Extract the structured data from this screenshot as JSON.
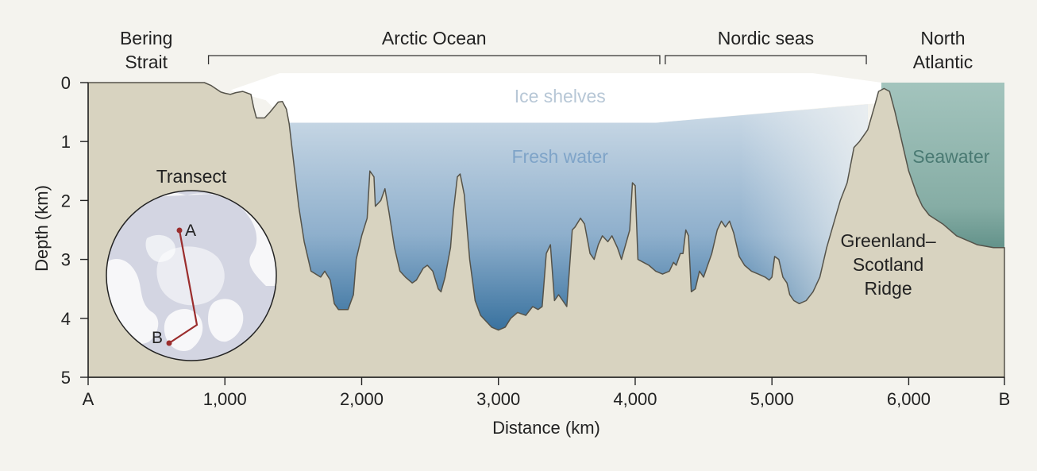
{
  "regions": [
    {
      "name": "Bering\nStrait",
      "from_km": 0,
      "to_km": 850,
      "bracket": false
    },
    {
      "name": "Arctic Ocean",
      "from_km": 880,
      "to_km": 4180,
      "bracket": true
    },
    {
      "name": "Nordic seas",
      "from_km": 4220,
      "to_km": 5690,
      "bracket": true
    },
    {
      "name": "North\nAtlantic",
      "from_km": 5800,
      "to_km": 6700,
      "bracket": false
    }
  ],
  "water_labels": {
    "ice": "Ice shelves",
    "fresh": "Fresh water",
    "sea": "Seawater"
  },
  "ridge_label": [
    "Greenland–",
    "Scotland",
    "Ridge"
  ],
  "axes": {
    "x_title": "Distance (km)",
    "y_title": "Depth (km)",
    "x_ticks": [
      {
        "value": 0,
        "label": "A"
      },
      {
        "value": 1000,
        "label": "1,000"
      },
      {
        "value": 2000,
        "label": "2,000"
      },
      {
        "value": 3000,
        "label": "3,000"
      },
      {
        "value": 4000,
        "label": "4,000"
      },
      {
        "value": 5000,
        "label": "5,000"
      },
      {
        "value": 6000,
        "label": "6,000"
      },
      {
        "value": 6700,
        "label": "B"
      }
    ],
    "y_ticks": [
      {
        "value": 0,
        "label": "0"
      },
      {
        "value": 1,
        "label": "1"
      },
      {
        "value": 2,
        "label": "2"
      },
      {
        "value": 3,
        "label": "3"
      },
      {
        "value": 4,
        "label": "4"
      },
      {
        "value": 5,
        "label": "5"
      }
    ],
    "x_range_km": [
      0,
      6700
    ],
    "y_range_km": [
      0,
      5
    ]
  },
  "inset": {
    "title": "Transect",
    "point_a": "A",
    "point_b": "B"
  },
  "colors": {
    "background": "#f4f3ee",
    "seabed": "#d8d3c0",
    "seabed_outline": "#55534a",
    "fresh_top": "#cddbe7",
    "fresh_bottom": "#2e6a99",
    "seawater_top": "#a3c4bd",
    "seawater_bottom": "#5a8b83",
    "transect_line": "#9b2d2d"
  },
  "profile_km": [
    [
      0,
      0
    ],
    [
      850,
      0
    ],
    [
      900,
      0.05
    ],
    [
      970,
      0.16
    ],
    [
      1000,
      0.18
    ],
    [
      1040,
      0.2
    ],
    [
      1080,
      0.17
    ],
    [
      1130,
      0.15
    ],
    [
      1190,
      0.2
    ],
    [
      1210,
      0.42
    ],
    [
      1230,
      0.6
    ],
    [
      1290,
      0.6
    ],
    [
      1330,
      0.5
    ],
    [
      1390,
      0.33
    ],
    [
      1420,
      0.32
    ],
    [
      1450,
      0.45
    ],
    [
      1470,
      0.7
    ],
    [
      1500,
      1.3
    ],
    [
      1540,
      2.1
    ],
    [
      1580,
      2.7
    ],
    [
      1630,
      3.2
    ],
    [
      1700,
      3.3
    ],
    [
      1730,
      3.2
    ],
    [
      1770,
      3.35
    ],
    [
      1800,
      3.75
    ],
    [
      1830,
      3.85
    ],
    [
      1900,
      3.85
    ],
    [
      1940,
      3.6
    ],
    [
      1960,
      3.0
    ],
    [
      2000,
      2.6
    ],
    [
      2040,
      2.3
    ],
    [
      2060,
      1.5
    ],
    [
      2090,
      1.6
    ],
    [
      2100,
      2.1
    ],
    [
      2140,
      2.0
    ],
    [
      2170,
      1.8
    ],
    [
      2200,
      2.2
    ],
    [
      2240,
      2.8
    ],
    [
      2280,
      3.2
    ],
    [
      2320,
      3.3
    ],
    [
      2370,
      3.4
    ],
    [
      2400,
      3.35
    ],
    [
      2450,
      3.15
    ],
    [
      2480,
      3.1
    ],
    [
      2520,
      3.2
    ],
    [
      2560,
      3.5
    ],
    [
      2580,
      3.55
    ],
    [
      2610,
      3.3
    ],
    [
      2650,
      2.8
    ],
    [
      2670,
      2.2
    ],
    [
      2700,
      1.6
    ],
    [
      2720,
      1.55
    ],
    [
      2750,
      1.9
    ],
    [
      2790,
      3.0
    ],
    [
      2830,
      3.7
    ],
    [
      2870,
      3.95
    ],
    [
      2950,
      4.15
    ],
    [
      3000,
      4.2
    ],
    [
      3050,
      4.15
    ],
    [
      3090,
      4.0
    ],
    [
      3140,
      3.9
    ],
    [
      3200,
      3.95
    ],
    [
      3250,
      3.8
    ],
    [
      3290,
      3.85
    ],
    [
      3320,
      3.8
    ],
    [
      3350,
      2.9
    ],
    [
      3380,
      2.75
    ],
    [
      3410,
      3.7
    ],
    [
      3440,
      3.6
    ],
    [
      3470,
      3.7
    ],
    [
      3500,
      3.8
    ],
    [
      3540,
      2.5
    ],
    [
      3560,
      2.45
    ],
    [
      3600,
      2.3
    ],
    [
      3630,
      2.4
    ],
    [
      3670,
      2.9
    ],
    [
      3700,
      3.0
    ],
    [
      3730,
      2.75
    ],
    [
      3760,
      2.6
    ],
    [
      3800,
      2.7
    ],
    [
      3830,
      2.6
    ],
    [
      3870,
      2.8
    ],
    [
      3900,
      3.0
    ],
    [
      3930,
      2.75
    ],
    [
      3960,
      2.5
    ],
    [
      3980,
      1.7
    ],
    [
      4000,
      1.75
    ],
    [
      4020,
      3.0
    ],
    [
      4060,
      3.05
    ],
    [
      4100,
      3.1
    ],
    [
      4150,
      3.2
    ],
    [
      4200,
      3.25
    ],
    [
      4250,
      3.2
    ],
    [
      4280,
      3.05
    ],
    [
      4300,
      3.1
    ],
    [
      4330,
      2.9
    ],
    [
      4350,
      2.9
    ],
    [
      4370,
      2.5
    ],
    [
      4390,
      2.6
    ],
    [
      4410,
      3.55
    ],
    [
      4440,
      3.5
    ],
    [
      4470,
      3.2
    ],
    [
      4500,
      3.3
    ],
    [
      4530,
      3.1
    ],
    [
      4560,
      2.9
    ],
    [
      4600,
      2.5
    ],
    [
      4630,
      2.35
    ],
    [
      4660,
      2.45
    ],
    [
      4690,
      2.35
    ],
    [
      4720,
      2.55
    ],
    [
      4760,
      2.95
    ],
    [
      4800,
      3.1
    ],
    [
      4850,
      3.2
    ],
    [
      4900,
      3.25
    ],
    [
      4950,
      3.3
    ],
    [
      4980,
      3.35
    ],
    [
      5000,
      3.3
    ],
    [
      5020,
      2.95
    ],
    [
      5050,
      3.0
    ],
    [
      5080,
      3.3
    ],
    [
      5110,
      3.4
    ],
    [
      5130,
      3.6
    ],
    [
      5160,
      3.7
    ],
    [
      5200,
      3.75
    ],
    [
      5250,
      3.7
    ],
    [
      5300,
      3.55
    ],
    [
      5350,
      3.3
    ],
    [
      5400,
      2.8
    ],
    [
      5450,
      2.4
    ],
    [
      5500,
      2.0
    ],
    [
      5550,
      1.7
    ],
    [
      5600,
      1.1
    ],
    [
      5640,
      1.0
    ],
    [
      5700,
      0.8
    ],
    [
      5750,
      0.4
    ],
    [
      5780,
      0.15
    ],
    [
      5820,
      0.1
    ],
    [
      5860,
      0.15
    ],
    [
      5900,
      0.5
    ],
    [
      5950,
      1.0
    ],
    [
      6000,
      1.5
    ],
    [
      6060,
      1.9
    ],
    [
      6100,
      2.1
    ],
    [
      6150,
      2.25
    ],
    [
      6250,
      2.4
    ],
    [
      6350,
      2.6
    ],
    [
      6500,
      2.75
    ],
    [
      6620,
      2.8
    ],
    [
      6700,
      2.8
    ]
  ],
  "ice_shelf_base_km": [
    [
      1040,
      0.13
    ],
    [
      1400,
      0.08
    ],
    [
      5650,
      0.08
    ],
    [
      5800,
      0.02
    ]
  ],
  "fresh_surface_km": [
    [
      1460,
      0.68
    ],
    [
      4150,
      0.68
    ],
    [
      5700,
      0.37
    ]
  ]
}
